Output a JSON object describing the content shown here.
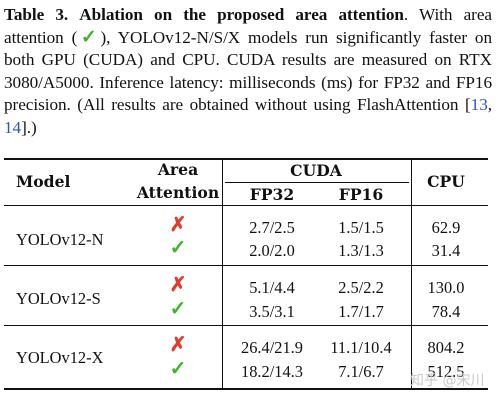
{
  "caption": {
    "label": "Table 3.",
    "title": "Ablation on the proposed area attention",
    "text_1": ". With area attention (",
    "check_mark": "✓",
    "text_2": "), YOLOv12-N/S/X models run significantly faster on both GPU (CUDA) and CPU. CUDA results are measured on RTX 3080/A5000. Inference latency: milliseconds (ms) for FP32 and FP16 precision. (All results are obtained without using FlashAttention [",
    "ref_1": "13",
    "sep": ", ",
    "ref_2": "14",
    "text_3": "].)"
  },
  "table": {
    "headers": {
      "model": "Model",
      "area_line1": "Area",
      "area_line2": "Attention",
      "cuda": "CUDA",
      "fp32": "FP32",
      "fp16": "FP16",
      "cpu": "CPU"
    },
    "cross_mark": "✗",
    "check_mark": "✓",
    "groups": [
      {
        "model": "YOLOv12-N",
        "rows": [
          {
            "area_attention": false,
            "fp32": "2.7/2.5",
            "fp16": "1.5/1.5",
            "cpu": "62.9"
          },
          {
            "area_attention": true,
            "fp32": "2.0/2.0",
            "fp16": "1.3/1.3",
            "cpu": "31.4"
          }
        ]
      },
      {
        "model": "YOLOv12-S",
        "rows": [
          {
            "area_attention": false,
            "fp32": "5.1/4.4",
            "fp16": "2.5/2.2",
            "cpu": "130.0"
          },
          {
            "area_attention": true,
            "fp32": "3.5/3.1",
            "fp16": "1.7/1.7",
            "cpu": "78.4"
          }
        ]
      },
      {
        "model": "YOLOv12-X",
        "rows": [
          {
            "area_attention": false,
            "fp32": "26.4/21.9",
            "fp16": "11.1/10.4",
            "cpu": "804.2"
          },
          {
            "area_attention": true,
            "fp32": "18.2/14.3",
            "fp16": "7.1/6.7",
            "cpu": "512.5"
          }
        ]
      }
    ]
  },
  "watermark": "知乎 @宋川"
}
